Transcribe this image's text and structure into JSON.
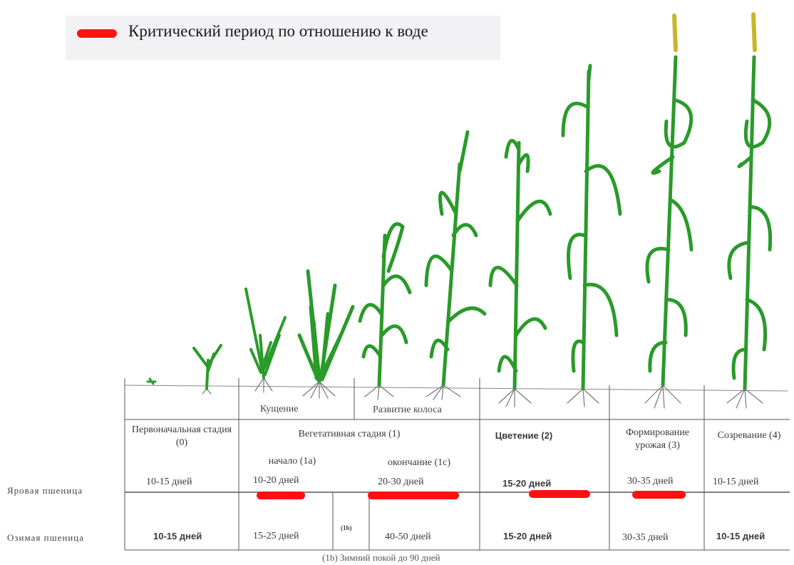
{
  "legend": {
    "label": "Критический период по отношению к воде",
    "color": "#ff1414"
  },
  "rows": {
    "spring": "Яровая пшеница",
    "winter": "Озимая пшеница"
  },
  "phase_captions": {
    "tillering": "Кущение",
    "ear_development": "Развитие колоса"
  },
  "stages": {
    "initial": "Первоначальная стадия (0)",
    "vegetative": "Вегетативная стадия (1)",
    "vegetative_start": "начало (1а)",
    "vegetative_end": "окончание (1с)",
    "flowering": "Цветение (2)",
    "yield_formation": "Формирование урожая (3)",
    "ripening": "Созревание (4)",
    "dormancy_marker": "(1b)"
  },
  "spring_wheat": {
    "initial": "10-15 дней",
    "veg_start": "10-20 дней",
    "veg_end": "20-30 дней",
    "flowering": "15-20 дней",
    "yield": "30-35 дней",
    "ripening": "10-15 дней"
  },
  "winter_wheat": {
    "initial": "10-15 дней",
    "veg_start": "15-25 дней",
    "veg_end": "40-50 дней",
    "flowering": "15-20 дней",
    "yield": "30-35 дней",
    "ripening": "10-15 дней"
  },
  "footnote": "(1b) Зимний покой до 90 дней",
  "plant_color": "#2a9a2a",
  "ear_color": "#c8b62a"
}
